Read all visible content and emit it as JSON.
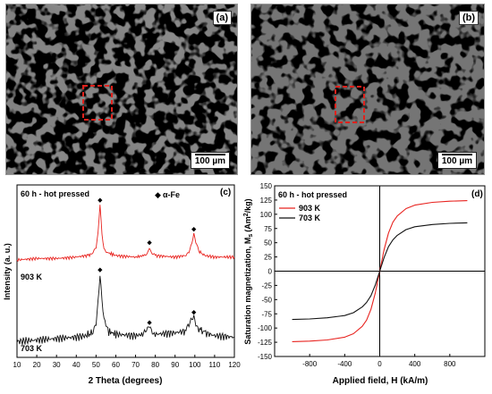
{
  "panels": {
    "a": {
      "label": "(a)",
      "scale_bar": "100 µm"
    },
    "b": {
      "label": "(b)",
      "scale_bar": "100 µm"
    },
    "c": {
      "label": "(c)",
      "title": "60 h - hot pressed",
      "legend": "α-Fe"
    },
    "d": {
      "label": "(d)",
      "title": "60 h - hot pressed"
    }
  },
  "colors": {
    "red": "#e8231f",
    "black": "#111111",
    "sem_bg": "#767676",
    "box": "#e0211c"
  },
  "chart_data": [
    {
      "type": "line",
      "panel": "c",
      "title": "60 h - hot pressed",
      "xlabel": "2 Theta (degrees)",
      "ylabel": "Intensity (a. u.)",
      "xlim": [
        10,
        120
      ],
      "xticks": [
        10,
        20,
        30,
        40,
        50,
        60,
        70,
        80,
        90,
        100,
        110,
        120
      ],
      "grid": false,
      "legend_position": "top-right",
      "peak_marker": "α-Fe",
      "peaks": [
        52,
        77,
        99.5
      ],
      "series": [
        {
          "name": "903 K",
          "color": "#e8231f",
          "x": [
            10,
            20,
            30,
            40,
            45,
            48,
            50,
            51,
            52,
            53,
            54,
            56,
            60,
            70,
            74,
            76,
            77,
            78,
            80,
            90,
            95,
            97,
            98.5,
            99.5,
            100.5,
            102,
            105,
            110,
            120
          ],
          "y": [
            0.62,
            0.63,
            0.63,
            0.64,
            0.65,
            0.66,
            0.7,
            0.8,
            1.0,
            0.8,
            0.7,
            0.67,
            0.65,
            0.64,
            0.65,
            0.67,
            0.71,
            0.67,
            0.65,
            0.64,
            0.65,
            0.68,
            0.74,
            0.8,
            0.74,
            0.68,
            0.65,
            0.64,
            0.64
          ]
        },
        {
          "name": "703 K",
          "color": "#111111",
          "x": [
            10,
            20,
            30,
            40,
            45,
            48,
            50,
            51,
            52,
            53,
            54,
            56,
            60,
            70,
            74,
            76,
            77,
            78,
            80,
            90,
            95,
            97,
            98.5,
            99.5,
            100.5,
            102,
            105,
            110,
            120
          ],
          "y": [
            0.06,
            0.07,
            0.08,
            0.09,
            0.1,
            0.12,
            0.2,
            0.34,
            0.52,
            0.34,
            0.2,
            0.13,
            0.11,
            0.1,
            0.11,
            0.13,
            0.16,
            0.13,
            0.11,
            0.12,
            0.13,
            0.16,
            0.21,
            0.23,
            0.19,
            0.15,
            0.12,
            0.1,
            0.09
          ]
        }
      ]
    },
    {
      "type": "line",
      "panel": "d",
      "title": "60 h - hot pressed",
      "xlabel": "Applied field, H (kA/m)",
      "ylabel": "Saturation magnetization, M",
      "ylabel_sub": "s",
      "ylabel_unit": "(Am",
      "ylabel_sup": "2",
      "ylabel_end": "/kg)",
      "xlim": [
        -1200,
        1200
      ],
      "ylim": [
        -150,
        150
      ],
      "xticks": [
        -800,
        -400,
        0,
        400,
        800
      ],
      "yticks": [
        -150,
        -125,
        -100,
        -75,
        -50,
        -25,
        0,
        25,
        50,
        75,
        100,
        125,
        150
      ],
      "grid": false,
      "legend_position": "top-left",
      "series": [
        {
          "name": "903 K",
          "color": "#e8231f",
          "x": [
            -1000,
            -800,
            -600,
            -400,
            -300,
            -200,
            -150,
            -100,
            -50,
            0,
            50,
            100,
            150,
            200,
            300,
            400,
            600,
            800,
            1000
          ],
          "y": [
            -124,
            -123,
            -121,
            -116,
            -110,
            -97,
            -86,
            -67,
            -38,
            0,
            38,
            67,
            86,
            97,
            110,
            116,
            121,
            123,
            124
          ]
        },
        {
          "name": "703 K",
          "color": "#111111",
          "x": [
            -1000,
            -800,
            -600,
            -400,
            -300,
            -200,
            -150,
            -100,
            -50,
            0,
            50,
            100,
            150,
            200,
            300,
            400,
            600,
            800,
            1000
          ],
          "y": [
            -85,
            -84,
            -82,
            -78,
            -73,
            -63,
            -55,
            -43,
            -24,
            0,
            24,
            43,
            55,
            63,
            73,
            78,
            82,
            84,
            85
          ]
        }
      ]
    }
  ]
}
